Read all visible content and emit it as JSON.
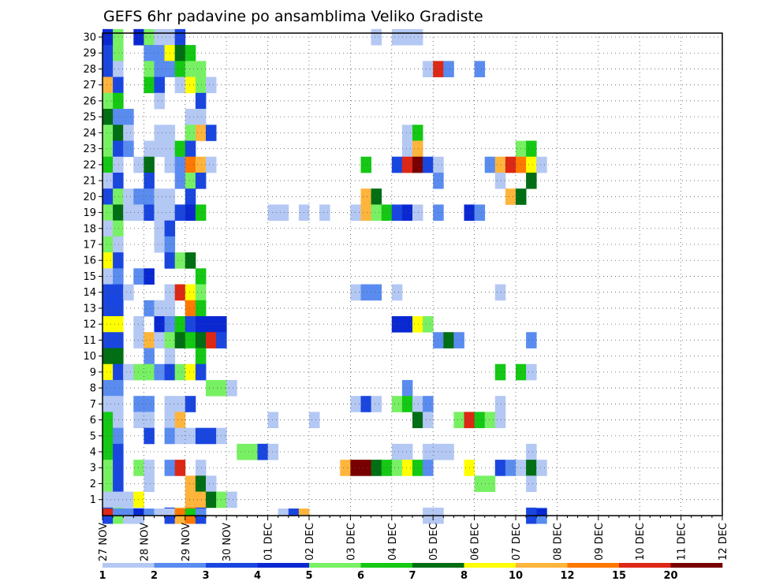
{
  "chart_data": {
    "type": "heatmap",
    "title": "GEFS 6hr padavine po ansamblima Veliko Gradiste",
    "y_ticks": [
      "1",
      "2",
      "3",
      "4",
      "5",
      "6",
      "7",
      "8",
      "9",
      "10",
      "11",
      "12",
      "13",
      "14",
      "15",
      "16",
      "17",
      "18",
      "19",
      "20",
      "21",
      "22",
      "23",
      "24",
      "25",
      "26",
      "27",
      "28",
      "29",
      "30"
    ],
    "x_ticks": [
      "27 NOV",
      "28 NOV",
      "29 NOV",
      "30 NOV",
      "01 DEC",
      "02 DEC",
      "03 DEC",
      "04 DEC",
      "05 DEC",
      "06 DEC",
      "07 DEC",
      "08 DEC",
      "09 DEC",
      "10 DEC",
      "11 DEC",
      "12 DEC"
    ],
    "steps_per_day": 4,
    "colorbar": {
      "labels": [
        "1",
        "2",
        "3",
        "4",
        "5",
        "6",
        "7",
        "8",
        "10",
        "12",
        "15",
        "20"
      ],
      "colors": [
        "#b4c8f4",
        "#5a8cf0",
        "#1a46e0",
        "#0a28d2",
        "#78f064",
        "#14c814",
        "#006e14",
        "#ffff00",
        "#ffb43c",
        "#ff7800",
        "#dc2814",
        "#780000"
      ]
    },
    "cells": [
      [
        30,
        0,
        4
      ],
      [
        30,
        1,
        5
      ],
      [
        30,
        3,
        4
      ],
      [
        30,
        4,
        5
      ],
      [
        30,
        5,
        1
      ],
      [
        30,
        6,
        1
      ],
      [
        30,
        7,
        3
      ],
      [
        30,
        26,
        1
      ],
      [
        30,
        28,
        1
      ],
      [
        30,
        29,
        1
      ],
      [
        30,
        30,
        1
      ],
      [
        29,
        0,
        3
      ],
      [
        29,
        1,
        5
      ],
      [
        29,
        4,
        2
      ],
      [
        29,
        5,
        2
      ],
      [
        29,
        6,
        8
      ],
      [
        29,
        7,
        7
      ],
      [
        29,
        8,
        6
      ],
      [
        28,
        0,
        3
      ],
      [
        28,
        1,
        1
      ],
      [
        28,
        4,
        5
      ],
      [
        28,
        5,
        2
      ],
      [
        28,
        6,
        2
      ],
      [
        28,
        7,
        6
      ],
      [
        28,
        8,
        5
      ],
      [
        28,
        9,
        5
      ],
      [
        28,
        31,
        1
      ],
      [
        28,
        32,
        11
      ],
      [
        28,
        33,
        2
      ],
      [
        28,
        36,
        2
      ],
      [
        27,
        0,
        9
      ],
      [
        27,
        1,
        3
      ],
      [
        27,
        4,
        6
      ],
      [
        27,
        5,
        3
      ],
      [
        27,
        7,
        1
      ],
      [
        27,
        8,
        8
      ],
      [
        27,
        9,
        5
      ],
      [
        27,
        10,
        1
      ],
      [
        26,
        0,
        5
      ],
      [
        26,
        1,
        6
      ],
      [
        26,
        5,
        1
      ],
      [
        26,
        9,
        3
      ],
      [
        25,
        0,
        7
      ],
      [
        25,
        1,
        2
      ],
      [
        25,
        2,
        2
      ],
      [
        25,
        8,
        1
      ],
      [
        25,
        9,
        1
      ],
      [
        24,
        0,
        5
      ],
      [
        24,
        1,
        7
      ],
      [
        24,
        2,
        1
      ],
      [
        24,
        5,
        1
      ],
      [
        24,
        6,
        1
      ],
      [
        24,
        8,
        5
      ],
      [
        24,
        9,
        9
      ],
      [
        24,
        10,
        3
      ],
      [
        24,
        29,
        1
      ],
      [
        24,
        30,
        6
      ],
      [
        23,
        0,
        5
      ],
      [
        23,
        1,
        3
      ],
      [
        23,
        2,
        2
      ],
      [
        23,
        4,
        1
      ],
      [
        23,
        5,
        1
      ],
      [
        23,
        6,
        1
      ],
      [
        23,
        7,
        6
      ],
      [
        23,
        8,
        3
      ],
      [
        23,
        29,
        1
      ],
      [
        23,
        30,
        9
      ],
      [
        23,
        40,
        5
      ],
      [
        23,
        41,
        6
      ],
      [
        22,
        0,
        6
      ],
      [
        22,
        1,
        1
      ],
      [
        22,
        3,
        1
      ],
      [
        22,
        4,
        7
      ],
      [
        22,
        6,
        1
      ],
      [
        22,
        7,
        2
      ],
      [
        22,
        8,
        10
      ],
      [
        22,
        9,
        9
      ],
      [
        22,
        10,
        1
      ],
      [
        22,
        25,
        6
      ],
      [
        22,
        28,
        3
      ],
      [
        22,
        29,
        11
      ],
      [
        22,
        30,
        12
      ],
      [
        22,
        31,
        3
      ],
      [
        22,
        32,
        1
      ],
      [
        22,
        37,
        2
      ],
      [
        22,
        38,
        9
      ],
      [
        22,
        39,
        11
      ],
      [
        22,
        40,
        10
      ],
      [
        22,
        41,
        8
      ],
      [
        22,
        42,
        1
      ],
      [
        21,
        0,
        1
      ],
      [
        21,
        1,
        3
      ],
      [
        21,
        4,
        3
      ],
      [
        21,
        7,
        2
      ],
      [
        21,
        8,
        5
      ],
      [
        21,
        9,
        3
      ],
      [
        21,
        32,
        2
      ],
      [
        21,
        38,
        1
      ],
      [
        21,
        41,
        7
      ],
      [
        20,
        0,
        3
      ],
      [
        20,
        1,
        5
      ],
      [
        20,
        2,
        1
      ],
      [
        20,
        3,
        2
      ],
      [
        20,
        4,
        2
      ],
      [
        20,
        5,
        1
      ],
      [
        20,
        6,
        1
      ],
      [
        20,
        8,
        3
      ],
      [
        20,
        25,
        9
      ],
      [
        20,
        26,
        7
      ],
      [
        20,
        39,
        9
      ],
      [
        20,
        40,
        7
      ],
      [
        19,
        0,
        5
      ],
      [
        19,
        1,
        7
      ],
      [
        19,
        2,
        1
      ],
      [
        19,
        3,
        1
      ],
      [
        19,
        4,
        3
      ],
      [
        19,
        5,
        1
      ],
      [
        19,
        6,
        1
      ],
      [
        19,
        7,
        3
      ],
      [
        19,
        8,
        4
      ],
      [
        19,
        9,
        6
      ],
      [
        19,
        16,
        1
      ],
      [
        19,
        17,
        1
      ],
      [
        19,
        19,
        1
      ],
      [
        19,
        21,
        1
      ],
      [
        19,
        24,
        1
      ],
      [
        19,
        25,
        9
      ],
      [
        19,
        26,
        5
      ],
      [
        19,
        27,
        6
      ],
      [
        19,
        28,
        3
      ],
      [
        19,
        29,
        4
      ],
      [
        19,
        30,
        1
      ],
      [
        19,
        32,
        2
      ],
      [
        19,
        35,
        4
      ],
      [
        19,
        36,
        2
      ],
      [
        18,
        0,
        1
      ],
      [
        18,
        1,
        5
      ],
      [
        18,
        5,
        1
      ],
      [
        18,
        6,
        3
      ],
      [
        17,
        0,
        5
      ],
      [
        17,
        1,
        1
      ],
      [
        17,
        5,
        1
      ],
      [
        17,
        6,
        2
      ],
      [
        16,
        0,
        8
      ],
      [
        16,
        1,
        3
      ],
      [
        16,
        6,
        3
      ],
      [
        16,
        7,
        5
      ],
      [
        16,
        8,
        7
      ],
      [
        15,
        0,
        1
      ],
      [
        15,
        1,
        2
      ],
      [
        15,
        3,
        2
      ],
      [
        15,
        4,
        4
      ],
      [
        15,
        9,
        6
      ],
      [
        14,
        0,
        3
      ],
      [
        14,
        1,
        3
      ],
      [
        14,
        2,
        1
      ],
      [
        14,
        6,
        1
      ],
      [
        14,
        7,
        11
      ],
      [
        14,
        8,
        8
      ],
      [
        14,
        9,
        5
      ],
      [
        14,
        24,
        1
      ],
      [
        14,
        25,
        2
      ],
      [
        14,
        26,
        2
      ],
      [
        14,
        28,
        1
      ],
      [
        14,
        38,
        1
      ],
      [
        13,
        0,
        3
      ],
      [
        13,
        1,
        3
      ],
      [
        13,
        4,
        2
      ],
      [
        13,
        5,
        1
      ],
      [
        13,
        6,
        1
      ],
      [
        13,
        8,
        10
      ],
      [
        13,
        9,
        6
      ],
      [
        12,
        0,
        8
      ],
      [
        12,
        1,
        8
      ],
      [
        12,
        3,
        1
      ],
      [
        12,
        5,
        4
      ],
      [
        12,
        6,
        2
      ],
      [
        12,
        7,
        6
      ],
      [
        12,
        8,
        3
      ],
      [
        12,
        9,
        4
      ],
      [
        12,
        10,
        4
      ],
      [
        12,
        11,
        4
      ],
      [
        12,
        28,
        4
      ],
      [
        12,
        29,
        4
      ],
      [
        12,
        30,
        8
      ],
      [
        12,
        31,
        5
      ],
      [
        11,
        0,
        3
      ],
      [
        11,
        1,
        3
      ],
      [
        11,
        3,
        1
      ],
      [
        11,
        4,
        9
      ],
      [
        11,
        5,
        1
      ],
      [
        11,
        6,
        5
      ],
      [
        11,
        7,
        7
      ],
      [
        11,
        8,
        6
      ],
      [
        11,
        9,
        7
      ],
      [
        11,
        10,
        11
      ],
      [
        11,
        11,
        3
      ],
      [
        11,
        32,
        2
      ],
      [
        11,
        33,
        7
      ],
      [
        11,
        34,
        2
      ],
      [
        11,
        41,
        2
      ],
      [
        10,
        0,
        7
      ],
      [
        10,
        1,
        7
      ],
      [
        10,
        4,
        2
      ],
      [
        10,
        6,
        1
      ],
      [
        10,
        9,
        6
      ],
      [
        9,
        0,
        8
      ],
      [
        9,
        1,
        3
      ],
      [
        9,
        2,
        1
      ],
      [
        9,
        3,
        5
      ],
      [
        9,
        4,
        5
      ],
      [
        9,
        5,
        2
      ],
      [
        9,
        6,
        3
      ],
      [
        9,
        7,
        5
      ],
      [
        9,
        8,
        8
      ],
      [
        9,
        9,
        3
      ],
      [
        9,
        38,
        6
      ],
      [
        9,
        40,
        6
      ],
      [
        9,
        41,
        1
      ],
      [
        8,
        0,
        2
      ],
      [
        8,
        1,
        2
      ],
      [
        8,
        10,
        5
      ],
      [
        8,
        11,
        5
      ],
      [
        8,
        12,
        1
      ],
      [
        8,
        29,
        2
      ],
      [
        7,
        0,
        1
      ],
      [
        7,
        1,
        1
      ],
      [
        7,
        3,
        2
      ],
      [
        7,
        4,
        2
      ],
      [
        7,
        6,
        1
      ],
      [
        7,
        7,
        1
      ],
      [
        7,
        8,
        3
      ],
      [
        7,
        24,
        1
      ],
      [
        7,
        25,
        3
      ],
      [
        7,
        26,
        1
      ],
      [
        7,
        28,
        5
      ],
      [
        7,
        29,
        6
      ],
      [
        7,
        30,
        1
      ],
      [
        7,
        31,
        2
      ],
      [
        7,
        38,
        1
      ],
      [
        6,
        0,
        6
      ],
      [
        6,
        1,
        1
      ],
      [
        6,
        3,
        1
      ],
      [
        6,
        4,
        1
      ],
      [
        6,
        6,
        1
      ],
      [
        6,
        7,
        9
      ],
      [
        6,
        16,
        1
      ],
      [
        6,
        20,
        1
      ],
      [
        6,
        30,
        7
      ],
      [
        6,
        31,
        1
      ],
      [
        6,
        34,
        5
      ],
      [
        6,
        35,
        11
      ],
      [
        6,
        36,
        6
      ],
      [
        6,
        37,
        5
      ],
      [
        6,
        38,
        1
      ],
      [
        5,
        0,
        6
      ],
      [
        5,
        1,
        2
      ],
      [
        5,
        4,
        3
      ],
      [
        5,
        6,
        2
      ],
      [
        5,
        7,
        1
      ],
      [
        5,
        8,
        1
      ],
      [
        5,
        9,
        3
      ],
      [
        5,
        10,
        3
      ],
      [
        5,
        11,
        1
      ],
      [
        4,
        0,
        6
      ],
      [
        4,
        1,
        3
      ],
      [
        4,
        13,
        5
      ],
      [
        4,
        14,
        5
      ],
      [
        4,
        15,
        3
      ],
      [
        4,
        16,
        1
      ],
      [
        4,
        28,
        1
      ],
      [
        4,
        29,
        1
      ],
      [
        4,
        31,
        1
      ],
      [
        4,
        32,
        1
      ],
      [
        4,
        33,
        1
      ],
      [
        4,
        41,
        1
      ],
      [
        3,
        0,
        5
      ],
      [
        3,
        1,
        3
      ],
      [
        3,
        3,
        5
      ],
      [
        3,
        4,
        1
      ],
      [
        3,
        6,
        2
      ],
      [
        3,
        7,
        11
      ],
      [
        3,
        9,
        1
      ],
      [
        3,
        23,
        9
      ],
      [
        3,
        24,
        12
      ],
      [
        3,
        25,
        12
      ],
      [
        3,
        26,
        7
      ],
      [
        3,
        27,
        6
      ],
      [
        3,
        28,
        5
      ],
      [
        3,
        29,
        8
      ],
      [
        3,
        30,
        6
      ],
      [
        3,
        31,
        2
      ],
      [
        3,
        35,
        8
      ],
      [
        3,
        38,
        3
      ],
      [
        3,
        39,
        2
      ],
      [
        3,
        40,
        1
      ],
      [
        3,
        41,
        7
      ],
      [
        3,
        42,
        1
      ],
      [
        2,
        0,
        5
      ],
      [
        2,
        1,
        3
      ],
      [
        2,
        4,
        1
      ],
      [
        2,
        8,
        9
      ],
      [
        2,
        9,
        7
      ],
      [
        2,
        10,
        1
      ],
      [
        2,
        36,
        5
      ],
      [
        2,
        37,
        5
      ],
      [
        2,
        41,
        1
      ],
      [
        1,
        0,
        1
      ],
      [
        1,
        1,
        1
      ],
      [
        1,
        2,
        1
      ],
      [
        1,
        3,
        8
      ],
      [
        1,
        8,
        9
      ],
      [
        1,
        9,
        9
      ],
      [
        1,
        10,
        7
      ],
      [
        1,
        11,
        5
      ],
      [
        1,
        12,
        1
      ],
      [
        0,
        0,
        3
      ],
      [
        0,
        1,
        5
      ],
      [
        0,
        2,
        1
      ],
      [
        0,
        3,
        1
      ],
      [
        0,
        6,
        3
      ],
      [
        0,
        7,
        9
      ],
      [
        0,
        8,
        10
      ],
      [
        0,
        9,
        3
      ],
      [
        0,
        31,
        1
      ],
      [
        0,
        32,
        1
      ],
      [
        0,
        41,
        3
      ],
      [
        0,
        42,
        2
      ],
      [
        -1,
        0,
        11
      ],
      [
        -1,
        1,
        2
      ],
      [
        -1,
        2,
        2
      ],
      [
        -1,
        3,
        4
      ],
      [
        -1,
        4,
        2
      ],
      [
        -1,
        5,
        1
      ],
      [
        -1,
        6,
        1
      ],
      [
        -1,
        7,
        10
      ],
      [
        -1,
        8,
        6
      ],
      [
        -1,
        9,
        2
      ],
      [
        -1,
        17,
        1
      ],
      [
        -1,
        18,
        3
      ],
      [
        -1,
        19,
        9
      ],
      [
        -1,
        42,
        4
      ]
    ]
  }
}
